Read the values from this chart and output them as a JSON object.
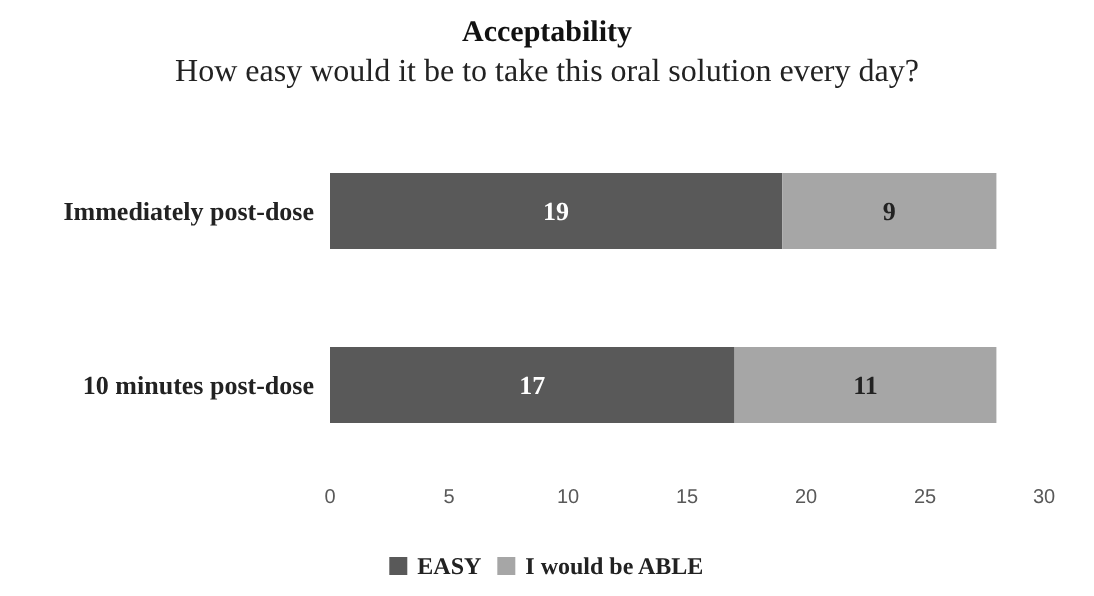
{
  "chart_data": {
    "type": "bar",
    "title": "Acceptability",
    "subtitle": "How easy would it be to take this oral solution every day?",
    "orientation": "horizontal",
    "stacked": true,
    "categories": [
      "Immediately post-dose",
      "10 minutes post-dose"
    ],
    "series": [
      {
        "name": "EASY",
        "color": "#595959",
        "values": [
          19,
          17
        ]
      },
      {
        "name": "I would be ABLE",
        "color": "#a6a6a6",
        "values": [
          9,
          11
        ]
      }
    ],
    "xlim": [
      0,
      30
    ],
    "xticks": [
      0,
      5,
      10,
      15,
      20,
      25,
      30
    ],
    "grid": false,
    "legend": "bottom",
    "data_labels": true
  }
}
